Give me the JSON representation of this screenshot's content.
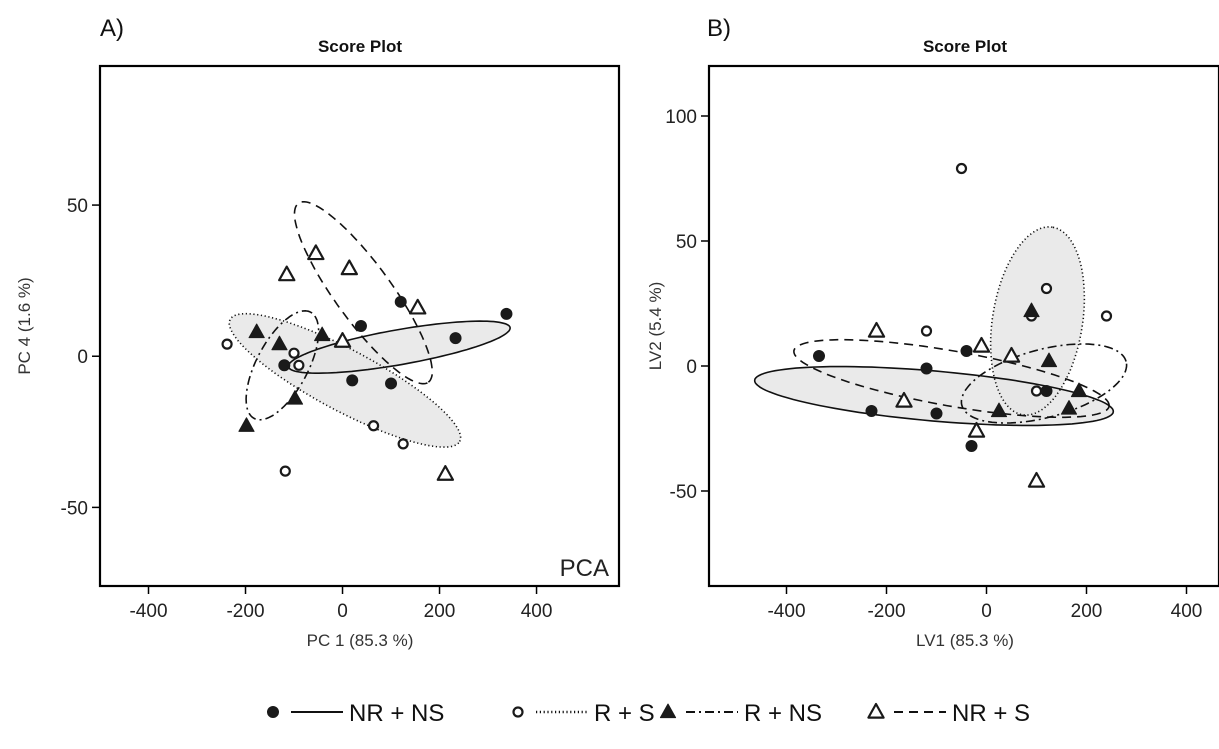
{
  "chart_data": [
    {
      "type": "scatter",
      "panel_label": "A)",
      "title": "Score Plot",
      "xlabel": "PC 1 (85.3 %)",
      "ylabel": "PC 4 (1.6 %)",
      "method_tag": "PCA",
      "xlim": [
        -500,
        570
      ],
      "ylim": [
        -76,
        96
      ],
      "xticks": [
        -400,
        -200,
        0,
        200,
        400
      ],
      "yticks": [
        -50,
        0,
        50
      ],
      "grid": false,
      "series": [
        {
          "name": "NR + NS",
          "marker": "filled-circle",
          "line": "solid",
          "points": [
            [
              120,
              18
            ],
            [
              338,
              14
            ],
            [
              233,
              6
            ],
            [
              38,
              10
            ],
            [
              -120,
              -3
            ],
            [
              20,
              -8
            ],
            [
              100,
              -9
            ]
          ],
          "ellipse": {
            "cx": 117,
            "cy": 3,
            "rx": 232,
            "ry": 36,
            "angle_deg": 10,
            "shaded": true
          }
        },
        {
          "name": "R + S",
          "marker": "open-circle",
          "line": "dotted",
          "points": [
            [
              -238,
              4
            ],
            [
              -100,
              1
            ],
            [
              -90,
              -3
            ],
            [
              64,
              -23
            ],
            [
              125,
              -29
            ],
            [
              -118,
              -38
            ]
          ],
          "ellipse": {
            "cx": 5,
            "cy": -8,
            "rx": 268,
            "ry": 63,
            "angle_deg": -28,
            "shaded": true
          }
        },
        {
          "name": "R + NS",
          "marker": "filled-triangle",
          "line": "dash-dot",
          "points": [
            [
              -177,
              8
            ],
            [
              -130,
              4
            ],
            [
              -42,
              7
            ],
            [
              -98,
              -14
            ],
            [
              -198,
              -23
            ]
          ],
          "ellipse": {
            "cx": -124,
            "cy": -3,
            "rx": 124,
            "ry": 53,
            "angle_deg": 62,
            "shaded": false
          }
        },
        {
          "name": "NR + S",
          "marker": "open-triangle",
          "line": "dashed",
          "points": [
            [
              -115,
              27
            ],
            [
              -55,
              34
            ],
            [
              14,
              29
            ],
            [
              0,
              5
            ],
            [
              155,
              16
            ],
            [
              212,
              -39
            ]
          ],
          "ellipse": {
            "cx": 43,
            "cy": 21,
            "rx": 228,
            "ry": 58,
            "angle_deg": -54,
            "shaded": false
          }
        }
      ]
    },
    {
      "type": "scatter",
      "panel_label": "B)",
      "title": "Score Plot",
      "xlabel": "LV1 (85.3 %)",
      "ylabel": "LV2 (5.4 %)",
      "xlim": [
        -555,
        465
      ],
      "ylim": [
        -88,
        120
      ],
      "xticks": [
        -400,
        -200,
        0,
        200,
        400
      ],
      "yticks": [
        -50,
        0,
        50,
        100
      ],
      "grid": false,
      "series": [
        {
          "name": "NR + NS",
          "marker": "filled-circle",
          "line": "solid",
          "points": [
            [
              -335,
              4
            ],
            [
              -230,
              -18
            ],
            [
              -120,
              -1
            ],
            [
              -100,
              -19
            ],
            [
              -40,
              6
            ],
            [
              -30,
              -32
            ],
            [
              120,
              -10
            ]
          ],
          "ellipse": {
            "cx": -105,
            "cy": -12,
            "rx": 360,
            "ry": 50,
            "angle_deg": -5,
            "shaded": true
          }
        },
        {
          "name": "R + S",
          "marker": "open-circle",
          "line": "dotted",
          "points": [
            [
              -50,
              79
            ],
            [
              -120,
              14
            ],
            [
              120,
              31
            ],
            [
              240,
              20
            ],
            [
              90,
              20
            ],
            [
              100,
              -10
            ]
          ],
          "ellipse": {
            "cx": 102,
            "cy": 18,
            "rx": 190,
            "ry": 90,
            "angle_deg": 81,
            "shaded": true
          }
        },
        {
          "name": "R + NS",
          "marker": "filled-triangle",
          "line": "dash-dot",
          "points": [
            [
              90,
              22
            ],
            [
              125,
              2
            ],
            [
              185,
              -10
            ],
            [
              165,
              -17
            ],
            [
              25,
              -18
            ]
          ],
          "ellipse": {
            "cx": 115,
            "cy": -7,
            "rx": 170,
            "ry": 68,
            "angle_deg": 15,
            "shaded": false
          }
        },
        {
          "name": "NR + S",
          "marker": "open-triangle",
          "line": "dashed",
          "points": [
            [
              -220,
              14
            ],
            [
              -165,
              -14
            ],
            [
              -20,
              -26
            ],
            [
              -10,
              8
            ],
            [
              50,
              4
            ],
            [
              100,
              -46
            ]
          ],
          "ellipse": {
            "cx": -70,
            "cy": -5,
            "rx": 320,
            "ry": 55,
            "angle_deg": -10,
            "shaded": false
          }
        }
      ]
    }
  ],
  "legend": {
    "placement": "bottom-center",
    "items": [
      {
        "label": "NR + NS",
        "marker": "filled-circle",
        "line": "solid"
      },
      {
        "label": "R + S",
        "marker": "open-circle",
        "line": "dotted"
      },
      {
        "label": "R + NS",
        "marker": "filled-triangle",
        "line": "dash-dot"
      },
      {
        "label": "NR + S",
        "marker": "open-triangle",
        "line": "dashed"
      }
    ]
  },
  "colors": {
    "marker": "#1a1a1a",
    "ellipse_fill": "#e6e6e6",
    "frame": "#000000"
  }
}
